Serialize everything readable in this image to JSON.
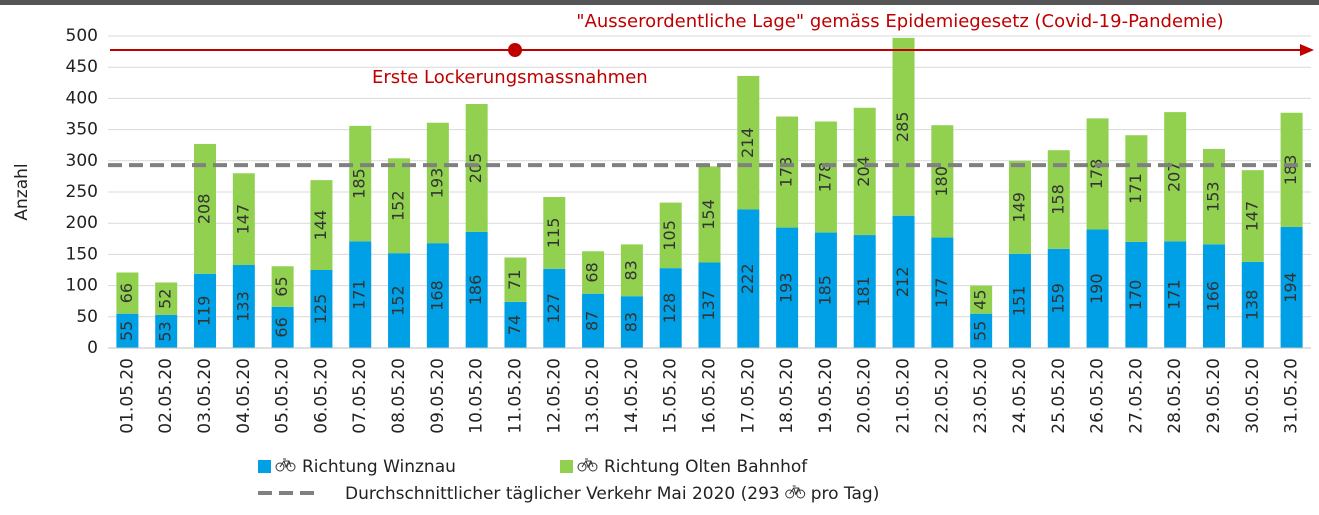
{
  "chart_data": {
    "type": "bar",
    "stacked": true,
    "y_label": "Anzahl",
    "categories": [
      "01.05.20",
      "02.05.20",
      "03.05.20",
      "04.05.20",
      "05.05.20",
      "06.05.20",
      "07.05.20",
      "08.05.20",
      "09.05.20",
      "10.05.20",
      "11.05.20",
      "12.05.20",
      "13.05.20",
      "14.05.20",
      "15.05.20",
      "16.05.20",
      "17.05.20",
      "18.05.20",
      "19.05.20",
      "20.05.20",
      "21.05.20",
      "22.05.20",
      "23.05.20",
      "24.05.20",
      "25.05.20",
      "26.05.20",
      "27.05.20",
      "28.05.20",
      "29.05.20",
      "30.05.20",
      "31.05.20"
    ],
    "series": [
      {
        "name": "Richtung Winznau",
        "color": "#00a0e6",
        "values": [
          55,
          53,
          119,
          133,
          66,
          125,
          171,
          152,
          168,
          186,
          74,
          127,
          87,
          83,
          128,
          137,
          222,
          193,
          185,
          181,
          212,
          177,
          55,
          151,
          159,
          190,
          170,
          171,
          166,
          138,
          194
        ]
      },
      {
        "name": "Richtung Olten Bahnhof",
        "color": "#92d050",
        "values": [
          66,
          52,
          208,
          147,
          65,
          144,
          185,
          152,
          193,
          205,
          71,
          115,
          68,
          83,
          105,
          154,
          214,
          178,
          178,
          204,
          285,
          180,
          45,
          149,
          158,
          178,
          171,
          207,
          153,
          147,
          183
        ]
      }
    ],
    "ylim": [
      0,
      500
    ],
    "yticks": [
      0,
      50,
      100,
      150,
      200,
      250,
      300,
      350,
      400,
      450,
      500
    ],
    "grid": true,
    "reference_line": {
      "value": 293,
      "color": "#808080",
      "label_start": "Durchschnittlicher täglicher Verkehr Mai 2020 (293",
      "label_end": "pro Tag)"
    },
    "annotations": [
      "\"Ausserordentliche Lage\" gemäss Epidemiegesetz (Covid-19-Pandemie)",
      "Erste Lockerungsmassnahmen"
    ]
  }
}
